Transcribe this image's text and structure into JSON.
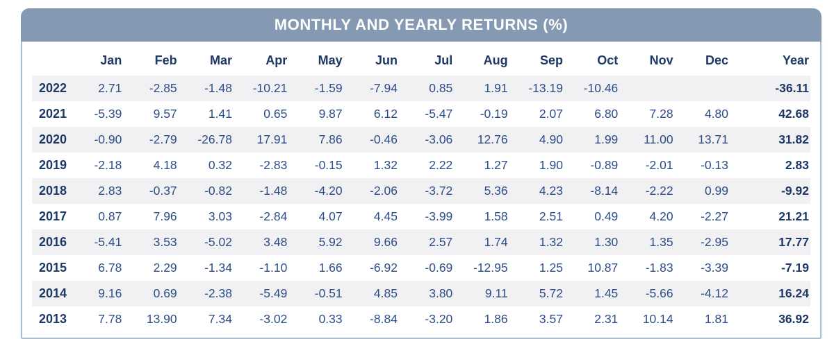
{
  "header": {
    "title": "MONTHLY AND YEARLY RETURNS (%)"
  },
  "table": {
    "columns": [
      "Jan",
      "Feb",
      "Mar",
      "Apr",
      "May",
      "Jun",
      "Jul",
      "Aug",
      "Sep",
      "Oct",
      "Nov",
      "Dec"
    ],
    "year_column": "Year",
    "rows": [
      {
        "year": "2022",
        "values": [
          "2.71",
          "-2.85",
          "-1.48",
          "-10.21",
          "-1.59",
          "-7.94",
          "0.85",
          "1.91",
          "-13.19",
          "-10.46",
          "",
          ""
        ],
        "total": "-36.11"
      },
      {
        "year": "2021",
        "values": [
          "-5.39",
          "9.57",
          "1.41",
          "0.65",
          "9.87",
          "6.12",
          "-5.47",
          "-0.19",
          "2.07",
          "6.80",
          "7.28",
          "4.80"
        ],
        "total": "42.68"
      },
      {
        "year": "2020",
        "values": [
          "-0.90",
          "-2.79",
          "-26.78",
          "17.91",
          "7.86",
          "-0.46",
          "-3.06",
          "12.76",
          "4.90",
          "1.99",
          "11.00",
          "13.71"
        ],
        "total": "31.82"
      },
      {
        "year": "2019",
        "values": [
          "-2.18",
          "4.18",
          "0.32",
          "-2.83",
          "-0.15",
          "1.32",
          "2.22",
          "1.27",
          "1.90",
          "-0.89",
          "-2.01",
          "-0.13"
        ],
        "total": "2.83"
      },
      {
        "year": "2018",
        "values": [
          "2.83",
          "-0.37",
          "-0.82",
          "-1.48",
          "-4.20",
          "-2.06",
          "-3.72",
          "5.36",
          "4.23",
          "-8.14",
          "-2.22",
          "0.99"
        ],
        "total": "-9.92"
      },
      {
        "year": "2017",
        "values": [
          "0.87",
          "7.96",
          "3.03",
          "-2.84",
          "4.07",
          "4.45",
          "-3.99",
          "1.58",
          "2.51",
          "0.49",
          "4.20",
          "-2.27"
        ],
        "total": "21.21"
      },
      {
        "year": "2016",
        "values": [
          "-5.41",
          "3.53",
          "-5.02",
          "3.48",
          "5.92",
          "9.66",
          "2.57",
          "1.74",
          "1.32",
          "1.30",
          "1.35",
          "-2.95"
        ],
        "total": "17.77"
      },
      {
        "year": "2015",
        "values": [
          "6.78",
          "2.29",
          "-1.34",
          "-1.10",
          "1.66",
          "-6.92",
          "-0.69",
          "-12.95",
          "1.25",
          "10.87",
          "-1.83",
          "-3.39"
        ],
        "total": "-7.19"
      },
      {
        "year": "2014",
        "values": [
          "9.16",
          "0.69",
          "-2.38",
          "-5.49",
          "-0.51",
          "4.85",
          "3.80",
          "9.11",
          "5.72",
          "1.45",
          "-5.66",
          "-4.12"
        ],
        "total": "16.24"
      },
      {
        "year": "2013",
        "values": [
          "7.78",
          "13.90",
          "7.34",
          "-3.02",
          "0.33",
          "-8.84",
          "-3.20",
          "1.86",
          "3.57",
          "2.31",
          "10.14",
          "1.81"
        ],
        "total": "36.92"
      }
    ]
  },
  "colors": {
    "header_bg": "#8599b3",
    "header_text": "#ffffff",
    "label_navy": "#1e3866",
    "value_blue": "#2c4d87",
    "stripe": "#f1f1f3",
    "border": "#a9bcd2"
  },
  "chart_data": {
    "type": "table",
    "title": "MONTHLY AND YEARLY RETURNS (%)",
    "columns": [
      "Jan",
      "Feb",
      "Mar",
      "Apr",
      "May",
      "Jun",
      "Jul",
      "Aug",
      "Sep",
      "Oct",
      "Nov",
      "Dec",
      "Year"
    ],
    "series": [
      {
        "name": "2022",
        "values": [
          2.71,
          -2.85,
          -1.48,
          -10.21,
          -1.59,
          -7.94,
          0.85,
          1.91,
          -13.19,
          -10.46,
          null,
          null
        ],
        "year_total": -36.11
      },
      {
        "name": "2021",
        "values": [
          -5.39,
          9.57,
          1.41,
          0.65,
          9.87,
          6.12,
          -5.47,
          -0.19,
          2.07,
          6.8,
          7.28,
          4.8
        ],
        "year_total": 42.68
      },
      {
        "name": "2020",
        "values": [
          -0.9,
          -2.79,
          -26.78,
          17.91,
          7.86,
          -0.46,
          -3.06,
          12.76,
          4.9,
          1.99,
          11.0,
          13.71
        ],
        "year_total": 31.82
      },
      {
        "name": "2019",
        "values": [
          -2.18,
          4.18,
          0.32,
          -2.83,
          -0.15,
          1.32,
          2.22,
          1.27,
          1.9,
          -0.89,
          -2.01,
          -0.13
        ],
        "year_total": 2.83
      },
      {
        "name": "2018",
        "values": [
          2.83,
          -0.37,
          -0.82,
          -1.48,
          -4.2,
          -2.06,
          -3.72,
          5.36,
          4.23,
          -8.14,
          -2.22,
          0.99
        ],
        "year_total": -9.92
      },
      {
        "name": "2017",
        "values": [
          0.87,
          7.96,
          3.03,
          -2.84,
          4.07,
          4.45,
          -3.99,
          1.58,
          2.51,
          0.49,
          4.2,
          -2.27
        ],
        "year_total": 21.21
      },
      {
        "name": "2016",
        "values": [
          -5.41,
          3.53,
          -5.02,
          3.48,
          5.92,
          9.66,
          2.57,
          1.74,
          1.32,
          1.3,
          1.35,
          -2.95
        ],
        "year_total": 17.77
      },
      {
        "name": "2015",
        "values": [
          6.78,
          2.29,
          -1.34,
          -1.1,
          1.66,
          -6.92,
          -0.69,
          -12.95,
          1.25,
          10.87,
          -1.83,
          -3.39
        ],
        "year_total": -7.19
      },
      {
        "name": "2014",
        "values": [
          9.16,
          0.69,
          -2.38,
          -5.49,
          -0.51,
          4.85,
          3.8,
          9.11,
          5.72,
          1.45,
          -5.66,
          -4.12
        ],
        "year_total": 16.24
      },
      {
        "name": "2013",
        "values": [
          7.78,
          13.9,
          7.34,
          -3.02,
          0.33,
          -8.84,
          -3.2,
          1.86,
          3.57,
          2.31,
          10.14,
          1.81
        ],
        "year_total": 36.92
      }
    ]
  }
}
